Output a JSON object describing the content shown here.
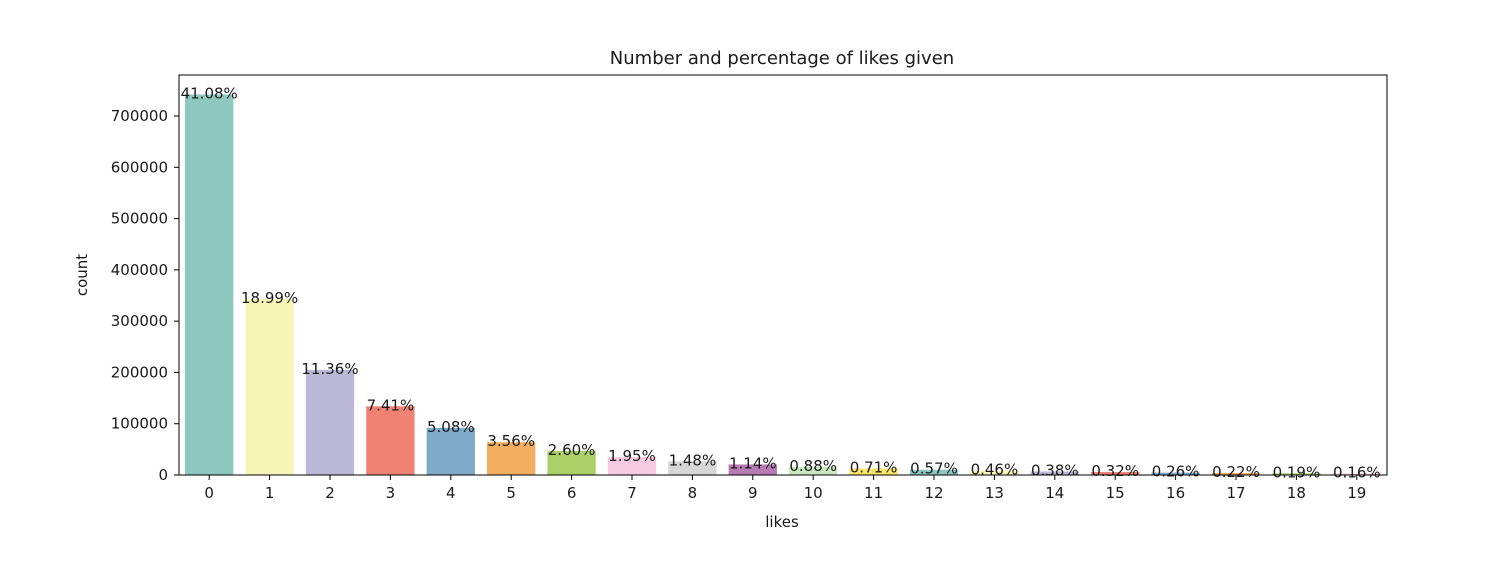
{
  "chart_data": {
    "type": "bar",
    "title": "Number and percentage of likes given",
    "xlabel": "likes",
    "ylabel": "count",
    "categories": [
      "0",
      "1",
      "2",
      "3",
      "4",
      "5",
      "6",
      "7",
      "8",
      "9",
      "10",
      "11",
      "12",
      "13",
      "14",
      "15",
      "16",
      "17",
      "18",
      "19"
    ],
    "values": [
      742000,
      343000,
      205000,
      134000,
      92000,
      64000,
      47000,
      35000,
      26700,
      20600,
      15900,
      12800,
      10300,
      8300,
      6900,
      5800,
      4700,
      4000,
      3400,
      2900
    ],
    "data_labels": [
      "41.08%",
      "18.99%",
      "11.36%",
      "7.41%",
      "5.08%",
      "3.56%",
      "2.60%",
      "1.95%",
      "1.48%",
      "1.14%",
      "0.88%",
      "0.71%",
      "0.57%",
      "0.46%",
      "0.38%",
      "0.32%",
      "0.26%",
      "0.22%",
      "0.19%",
      "0.16%"
    ],
    "colors": [
      "#8dc8be",
      "#f7f5b6",
      "#bbb7d6",
      "#ef8273",
      "#7eaac9",
      "#f2ad5e",
      "#acd068",
      "#f7cbdf",
      "#d7d7d7",
      "#b67bb4",
      "#c9e8c0",
      "#fde56a",
      "#8dc8be",
      "#f7f5b6",
      "#bbb7d6",
      "#ef8273",
      "#7eaac9",
      "#f2ad5e",
      "#acd068",
      "#f7cbdf"
    ],
    "yticks": [
      "0",
      "100000",
      "200000",
      "300000",
      "400000",
      "500000",
      "600000",
      "700000"
    ],
    "ylim": [
      0,
      780000
    ],
    "grid": false,
    "legend": "none"
  }
}
